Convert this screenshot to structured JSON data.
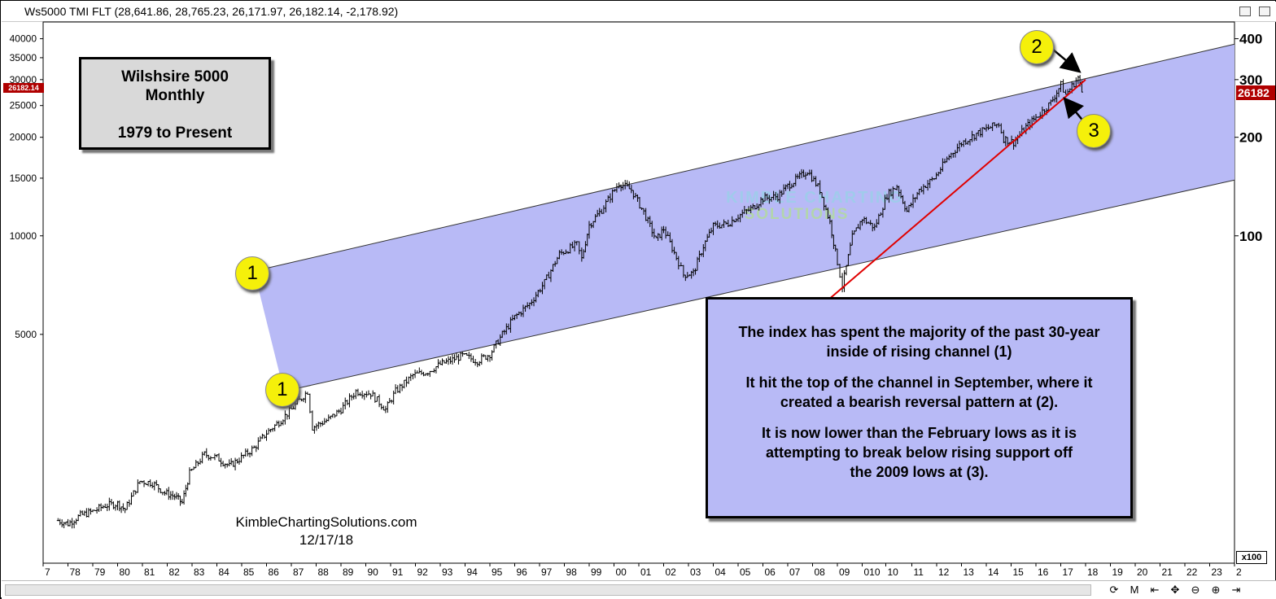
{
  "window": {
    "title": "Ws5000 TMI FLT (28,641.86, 28,765.23, 26,171.97, 26,182.14, -2,178.92)"
  },
  "chart_data": {
    "type": "ohlc-bar",
    "title": "Wilshsire 5000",
    "subtitle_lines": [
      "Monthly",
      "1979 to Present"
    ],
    "y_scale": "log",
    "ylim": [
      1000,
      45000
    ],
    "left_axis_ticks": [
      {
        "value": 40000,
        "label": "40000"
      },
      {
        "value": 35000,
        "label": "35000"
      },
      {
        "value": 30000,
        "label": "30000"
      },
      {
        "value": 25000,
        "label": "25000"
      },
      {
        "value": 20000,
        "label": "20000"
      },
      {
        "value": 15000,
        "label": "15000"
      },
      {
        "value": 10000,
        "label": "10000"
      },
      {
        "value": 5000,
        "label": "5000"
      }
    ],
    "right_axis_ticks": [
      {
        "value": 40000,
        "label": "400"
      },
      {
        "value": 30000,
        "label": "300"
      },
      {
        "value": 20000,
        "label": "200"
      },
      {
        "value": 10000,
        "label": "100"
      }
    ],
    "right_axis_multiplier": "x100",
    "x_ticks": [
      "7",
      "78",
      "79",
      "80",
      "81",
      "82",
      "83",
      "84",
      "85",
      "86",
      "87",
      "88",
      "89",
      "90",
      "91",
      "92",
      "93",
      "94",
      "95",
      "96",
      "97",
      "98",
      "99",
      "00",
      "01",
      "02",
      "03",
      "04",
      "05",
      "06",
      "07",
      "08",
      "09",
      "010",
      "10",
      "11",
      "12",
      "13",
      "14",
      "15",
      "16",
      "17",
      "18",
      "19",
      "20",
      "21",
      "22",
      "23",
      "2"
    ],
    "x_tick_years": [
      1977,
      1978,
      1979,
      1980,
      1981,
      1982,
      1983,
      1984,
      1985,
      1986,
      1987,
      1988,
      1989,
      1990,
      1991,
      1992,
      1993,
      1994,
      1995,
      1996,
      1997,
      1998,
      1999,
      2000,
      2001,
      2002,
      2003,
      2004,
      2005,
      2006,
      2007,
      2008,
      2009,
      2010,
      2010.95,
      2012,
      2013,
      2014,
      2015,
      2016,
      2017,
      2018,
      2019,
      2020,
      2021,
      2022,
      2023,
      2024,
      2025
    ],
    "x_range": [
      1977.0,
      2025.0
    ],
    "last_price": "26182.14",
    "last_price_right": "26182",
    "series": [
      {
        "kind": "ohlc",
        "points": [
          {
            "x": 1977.6,
            "y": 1350
          },
          {
            "x": 1978.0,
            "y": 1320
          },
          {
            "x": 1978.5,
            "y": 1400
          },
          {
            "x": 1979.0,
            "y": 1440
          },
          {
            "x": 1979.5,
            "y": 1500
          },
          {
            "x": 1980.0,
            "y": 1520
          },
          {
            "x": 1980.3,
            "y": 1460
          },
          {
            "x": 1980.9,
            "y": 1780
          },
          {
            "x": 1981.4,
            "y": 1760
          },
          {
            "x": 1981.9,
            "y": 1640
          },
          {
            "x": 1982.3,
            "y": 1600
          },
          {
            "x": 1982.6,
            "y": 1530
          },
          {
            "x": 1982.9,
            "y": 1880
          },
          {
            "x": 1983.5,
            "y": 2150
          },
          {
            "x": 1984.0,
            "y": 2100
          },
          {
            "x": 1984.5,
            "y": 1980
          },
          {
            "x": 1984.9,
            "y": 2080
          },
          {
            "x": 1985.5,
            "y": 2250
          },
          {
            "x": 1986.0,
            "y": 2500
          },
          {
            "x": 1986.5,
            "y": 2700
          },
          {
            "x": 1987.0,
            "y": 2950
          },
          {
            "x": 1987.65,
            "y": 3350
          },
          {
            "x": 1987.85,
            "y": 2600
          },
          {
            "x": 1988.5,
            "y": 2750
          },
          {
            "x": 1989.0,
            "y": 2950
          },
          {
            "x": 1989.6,
            "y": 3350
          },
          {
            "x": 1990.2,
            "y": 3300
          },
          {
            "x": 1990.8,
            "y": 2950
          },
          {
            "x": 1991.2,
            "y": 3350
          },
          {
            "x": 1991.9,
            "y": 3750
          },
          {
            "x": 1992.5,
            "y": 3850
          },
          {
            "x": 1993.0,
            "y": 4050
          },
          {
            "x": 1993.9,
            "y": 4300
          },
          {
            "x": 1994.5,
            "y": 4150
          },
          {
            "x": 1995.0,
            "y": 4350
          },
          {
            "x": 1995.5,
            "y": 5000
          },
          {
            "x": 1996.0,
            "y": 5650
          },
          {
            "x": 1996.6,
            "y": 6200
          },
          {
            "x": 1997.2,
            "y": 7200
          },
          {
            "x": 1997.8,
            "y": 8800
          },
          {
            "x": 1998.5,
            "y": 9400
          },
          {
            "x": 1998.7,
            "y": 8500
          },
          {
            "x": 1999.0,
            "y": 10800
          },
          {
            "x": 1999.5,
            "y": 12000
          },
          {
            "x": 2000.2,
            "y": 14500
          },
          {
            "x": 2000.7,
            "y": 13800
          },
          {
            "x": 2001.2,
            "y": 11800
          },
          {
            "x": 2001.7,
            "y": 9700
          },
          {
            "x": 2002.0,
            "y": 10500
          },
          {
            "x": 2002.6,
            "y": 8300
          },
          {
            "x": 2002.8,
            "y": 7600
          },
          {
            "x": 2003.2,
            "y": 7700
          },
          {
            "x": 2003.6,
            "y": 9300
          },
          {
            "x": 2004.0,
            "y": 10700
          },
          {
            "x": 2004.6,
            "y": 10900
          },
          {
            "x": 2005.0,
            "y": 11500
          },
          {
            "x": 2005.6,
            "y": 12200
          },
          {
            "x": 2006.0,
            "y": 13000
          },
          {
            "x": 2006.6,
            "y": 13200
          },
          {
            "x": 2007.0,
            "y": 14200
          },
          {
            "x": 2007.8,
            "y": 15800
          },
          {
            "x": 2008.3,
            "y": 13800
          },
          {
            "x": 2008.7,
            "y": 11000
          },
          {
            "x": 2009.0,
            "y": 8300
          },
          {
            "x": 2009.2,
            "y": 7000
          },
          {
            "x": 2009.6,
            "y": 9900
          },
          {
            "x": 2010.0,
            "y": 11300
          },
          {
            "x": 2010.5,
            "y": 10600
          },
          {
            "x": 2011.0,
            "y": 13300
          },
          {
            "x": 2011.4,
            "y": 14200
          },
          {
            "x": 2011.8,
            "y": 11900
          },
          {
            "x": 2012.3,
            "y": 13800
          },
          {
            "x": 2012.9,
            "y": 15000
          },
          {
            "x": 2013.5,
            "y": 17500
          },
          {
            "x": 2014.0,
            "y": 19200
          },
          {
            "x": 2014.6,
            "y": 20500
          },
          {
            "x": 2015.0,
            "y": 21200
          },
          {
            "x": 2015.5,
            "y": 22000
          },
          {
            "x": 2015.7,
            "y": 19800
          },
          {
            "x": 2016.1,
            "y": 19300
          },
          {
            "x": 2016.6,
            "y": 21500
          },
          {
            "x": 2017.0,
            "y": 23000
          },
          {
            "x": 2017.6,
            "y": 25500
          },
          {
            "x": 2018.0,
            "y": 28900
          },
          {
            "x": 2018.2,
            "y": 27000
          },
          {
            "x": 2018.7,
            "y": 30400
          },
          {
            "x": 2018.85,
            "y": 27500
          },
          {
            "x": 2018.95,
            "y": 26200
          }
        ]
      }
    ],
    "channel": {
      "upper": [
        {
          "x": 1985.5,
          "y": 7800
        },
        {
          "x": 2025.0,
          "y": 38500
        }
      ],
      "lower": [
        {
          "x": 1986.7,
          "y": 3350
        },
        {
          "x": 2025.0,
          "y": 14800
        }
      ]
    },
    "support_line": [
      {
        "x": 2008.0,
        "y": 5800
      },
      {
        "x": 2019.0,
        "y": 30000
      }
    ],
    "colors": {
      "channel_fill": "#b8baf6",
      "bars": "#000000",
      "support_line": "#e00000",
      "marker_fill": "#f5f00a",
      "price_tag": "#b00000"
    },
    "watermark": [
      "KIMBLE CHARTING",
      "SOLUTIONS"
    ],
    "markers": [
      {
        "label": "1",
        "x": 1985.4,
        "y": 7700
      },
      {
        "label": "1",
        "x": 1986.6,
        "y": 3400
      },
      {
        "label": "2",
        "x": 2017.0,
        "y": 38000
      },
      {
        "label": "3",
        "x": 2019.3,
        "y": 21000
      }
    ],
    "arrows": [
      {
        "from": {
          "x": 2017.7,
          "y": 37000
        },
        "to": {
          "x": 2018.7,
          "y": 32000
        }
      },
      {
        "from": {
          "x": 2019.0,
          "y": 22000
        },
        "to": {
          "x": 2018.2,
          "y": 26000
        }
      }
    ]
  },
  "annotations": {
    "title_box": {
      "lines": [
        "Wilshsire 5000",
        "Monthly",
        "",
        "1979 to Present"
      ]
    },
    "notes_box": {
      "paragraphs": [
        "The index has spent the majority of the past 30-year inside of rising channel (1)",
        "It hit the top of the channel in September, where it created a bearish reversal pattern at (2).",
        "It is now lower than the February lows as it is attempting to break below rising support off the 2009 lows at (3)."
      ]
    },
    "credit": [
      "KimbleChartingSolutions.com",
      "12/17/18"
    ]
  },
  "controls": {
    "items": [
      {
        "name": "refresh-icon",
        "glyph": "⟳"
      },
      {
        "name": "period-button",
        "glyph": "M"
      },
      {
        "name": "scroll-left-icon",
        "glyph": "⇤"
      },
      {
        "name": "move-icon",
        "glyph": "✥"
      },
      {
        "name": "zoom-out-icon",
        "glyph": "⊖"
      },
      {
        "name": "zoom-in-icon",
        "glyph": "⊕"
      },
      {
        "name": "scroll-right-icon",
        "glyph": "⇥"
      }
    ]
  }
}
